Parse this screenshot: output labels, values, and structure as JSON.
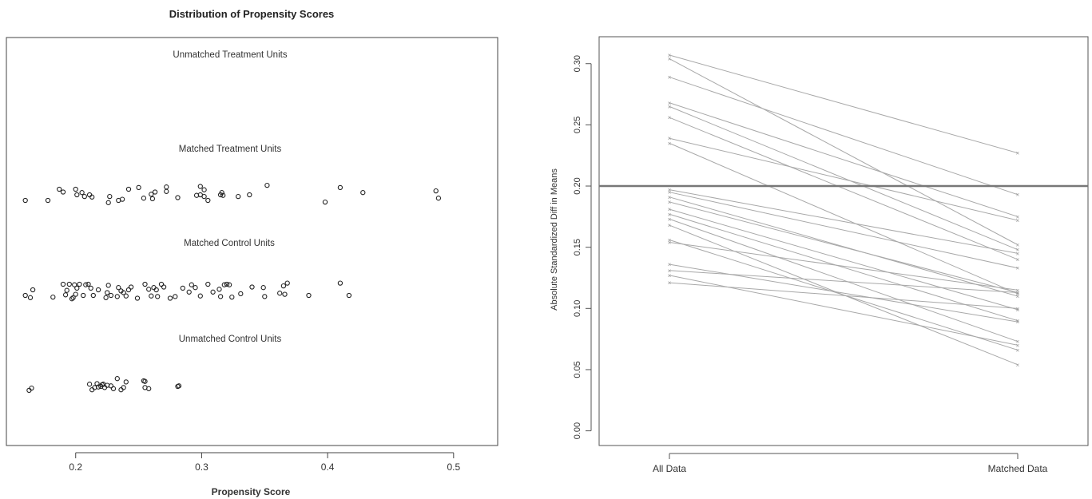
{
  "chart_data": [
    {
      "type": "scatter",
      "title": "Distribution of Propensity Scores",
      "xlabel": "Propensity Score",
      "ylabel": "",
      "xlim": [
        0.145,
        0.535
      ],
      "xticks": [
        0.2,
        0.3,
        0.4,
        0.5
      ],
      "grid": false,
      "groups": [
        {
          "name": "Unmatched Treatment Units",
          "points": []
        },
        {
          "name": "Matched Treatment Units",
          "points": [
            [
              0.16,
              -1
            ],
            [
              0.178,
              -1
            ],
            [
              0.187,
              1
            ],
            [
              0.19,
              0.5
            ],
            [
              0.2,
              1
            ],
            [
              0.201,
              0
            ],
            [
              0.205,
              0.4
            ],
            [
              0.207,
              -0.3
            ],
            [
              0.211,
              0
            ],
            [
              0.213,
              -0.4
            ],
            [
              0.226,
              -1.4
            ],
            [
              0.227,
              -0.3
            ],
            [
              0.234,
              -1
            ],
            [
              0.237,
              -0.8
            ],
            [
              0.242,
              1
            ],
            [
              0.25,
              1.3
            ],
            [
              0.254,
              -0.6
            ],
            [
              0.26,
              0.1
            ],
            [
              0.261,
              -0.7
            ],
            [
              0.263,
              0.5
            ],
            [
              0.272,
              0.6
            ],
            [
              0.272,
              1.4
            ],
            [
              0.281,
              -0.5
            ],
            [
              0.296,
              -0.1
            ],
            [
              0.299,
              0
            ],
            [
              0.299,
              1.5
            ],
            [
              0.302,
              -0.3
            ],
            [
              0.302,
              0.9
            ],
            [
              0.305,
              -1
            ],
            [
              0.315,
              0
            ],
            [
              0.317,
              -0.1
            ],
            [
              0.316,
              0.4
            ],
            [
              0.329,
              -0.3
            ],
            [
              0.338,
              0
            ],
            [
              0.352,
              1.7
            ],
            [
              0.398,
              -1.3
            ],
            [
              0.41,
              1.3
            ],
            [
              0.428,
              0.4
            ],
            [
              0.486,
              0.7
            ],
            [
              0.488,
              -0.6
            ]
          ]
        },
        {
          "name": "Matched Control Units",
          "points": [
            [
              0.16,
              -1
            ],
            [
              0.164,
              -1.4
            ],
            [
              0.166,
              0
            ],
            [
              0.182,
              -1.3
            ],
            [
              0.19,
              1
            ],
            [
              0.192,
              -0.9
            ],
            [
              0.193,
              -0.1
            ],
            [
              0.195,
              1
            ],
            [
              0.197,
              -1.6
            ],
            [
              0.198,
              -1.4
            ],
            [
              0.199,
              0.9
            ],
            [
              0.2,
              -0.8
            ],
            [
              0.201,
              0.3
            ],
            [
              0.203,
              1
            ],
            [
              0.206,
              -1
            ],
            [
              0.208,
              0.9
            ],
            [
              0.21,
              1
            ],
            [
              0.212,
              0.3
            ],
            [
              0.214,
              -1
            ],
            [
              0.218,
              0
            ],
            [
              0.224,
              -1.4
            ],
            [
              0.225,
              -0.5
            ],
            [
              0.226,
              0.8
            ],
            [
              0.228,
              -1
            ],
            [
              0.233,
              -1.2
            ],
            [
              0.234,
              0.4
            ],
            [
              0.236,
              -0.2
            ],
            [
              0.238,
              -0.5
            ],
            [
              0.24,
              -1.1
            ],
            [
              0.242,
              0
            ],
            [
              0.244,
              0.5
            ],
            [
              0.249,
              -1.5
            ],
            [
              0.255,
              1
            ],
            [
              0.258,
              0.1
            ],
            [
              0.26,
              -1.1
            ],
            [
              0.262,
              0.4
            ],
            [
              0.264,
              0
            ],
            [
              0.265,
              -1.2
            ],
            [
              0.268,
              1
            ],
            [
              0.27,
              0.5
            ],
            [
              0.275,
              -1.5
            ],
            [
              0.279,
              -1.2
            ],
            [
              0.285,
              0.3
            ],
            [
              0.29,
              -0.4
            ],
            [
              0.292,
              0.9
            ],
            [
              0.295,
              0.4
            ],
            [
              0.299,
              -1.1
            ],
            [
              0.305,
              1
            ],
            [
              0.309,
              -0.4
            ],
            [
              0.314,
              0.1
            ],
            [
              0.315,
              -1.2
            ],
            [
              0.318,
              0.9
            ],
            [
              0.32,
              1
            ],
            [
              0.322,
              0.9
            ],
            [
              0.324,
              -1.3
            ],
            [
              0.331,
              -0.7
            ],
            [
              0.34,
              0.5
            ],
            [
              0.349,
              0.4
            ],
            [
              0.35,
              -1.2
            ],
            [
              0.362,
              -0.6
            ],
            [
              0.365,
              0.7
            ],
            [
              0.366,
              -0.8
            ],
            [
              0.368,
              1.2
            ],
            [
              0.385,
              -1
            ],
            [
              0.41,
              1.2
            ],
            [
              0.417,
              -1
            ]
          ]
        },
        {
          "name": "Unmatched Control Units",
          "points": [
            [
              0.163,
              -0.7
            ],
            [
              0.165,
              -0.3
            ],
            [
              0.211,
              0.4
            ],
            [
              0.213,
              -0.6
            ],
            [
              0.215,
              -0.2
            ],
            [
              0.217,
              0.5
            ],
            [
              0.218,
              -0.1
            ],
            [
              0.22,
              0
            ],
            [
              0.221,
              0.3
            ],
            [
              0.222,
              0.4
            ],
            [
              0.223,
              -0.2
            ],
            [
              0.225,
              0.2
            ],
            [
              0.228,
              0.1
            ],
            [
              0.23,
              -0.4
            ],
            [
              0.233,
              1.4
            ],
            [
              0.236,
              -0.6
            ],
            [
              0.238,
              -0.2
            ],
            [
              0.24,
              0.8
            ],
            [
              0.254,
              1
            ],
            [
              0.255,
              0.9
            ],
            [
              0.255,
              -0.2
            ],
            [
              0.258,
              -0.4
            ],
            [
              0.281,
              0
            ],
            [
              0.282,
              0.1
            ]
          ]
        }
      ]
    },
    {
      "type": "line",
      "title": "",
      "xlabel": "",
      "ylabel": "Absolute Standardized Diff in Means",
      "categories": [
        "All Data",
        "Matched Data"
      ],
      "ylim": [
        -0.012,
        0.322
      ],
      "yticks": [
        "0.00",
        "0.05",
        "0.10",
        "0.15",
        "0.20",
        "0.25",
        "0.30"
      ],
      "reference_line": 0.2,
      "grid": false,
      "series": [
        {
          "values": [
            0.307,
            0.227
          ]
        },
        {
          "values": [
            0.304,
            0.152
          ]
        },
        {
          "values": [
            0.289,
            0.193
          ]
        },
        {
          "values": [
            0.268,
            0.175
          ]
        },
        {
          "values": [
            0.265,
            0.148
          ]
        },
        {
          "values": [
            0.256,
            0.14
          ]
        },
        {
          "values": [
            0.239,
            0.172
          ]
        },
        {
          "values": [
            0.235,
            0.112
          ]
        },
        {
          "values": [
            0.197,
            0.145
          ]
        },
        {
          "values": [
            0.195,
            0.133
          ]
        },
        {
          "values": [
            0.191,
            0.11
          ]
        },
        {
          "values": [
            0.187,
            0.113
          ]
        },
        {
          "values": [
            0.181,
            0.099
          ]
        },
        {
          "values": [
            0.177,
            0.09
          ]
        },
        {
          "values": [
            0.173,
            0.073
          ]
        },
        {
          "values": [
            0.168,
            0.054
          ]
        },
        {
          "values": [
            0.156,
            0.066
          ]
        },
        {
          "values": [
            0.154,
            0.115
          ]
        },
        {
          "values": [
            0.136,
            0.089
          ]
        },
        {
          "values": [
            0.131,
            0.113
          ]
        },
        {
          "values": [
            0.127,
            0.07
          ]
        },
        {
          "values": [
            0.121,
            0.1
          ]
        }
      ]
    }
  ]
}
